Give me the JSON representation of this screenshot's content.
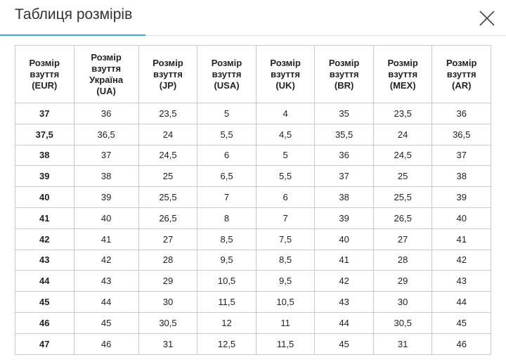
{
  "header": {
    "title": "Таблиця розмірів"
  },
  "table": {
    "header": [
      "Розмір\nвзуття\n(EUR)",
      "Розмір\nвзуття\nУкраїна\n(UA)",
      "Розмір\nвзуття\n(JP)",
      "Розмір\nвзуття\n(USA)",
      "Розмір\nвзуття\n(UK)",
      "Розмір\nвзуття\n(BR)",
      "Розмір\nвзуття\n(MEX)",
      "Розмір\nвзуття\n(AR)"
    ],
    "rows": [
      [
        "37",
        "36",
        "23,5",
        "5",
        "4",
        "35",
        "23,5",
        "36"
      ],
      [
        "37,5",
        "36,5",
        "24",
        "5,5",
        "4,5",
        "35,5",
        "24",
        "36,5"
      ],
      [
        "38",
        "37",
        "24,5",
        "6",
        "5",
        "36",
        "24,5",
        "37"
      ],
      [
        "39",
        "38",
        "25",
        "6,5",
        "5,5",
        "37",
        "25",
        "38"
      ],
      [
        "40",
        "39",
        "25,5",
        "7",
        "6",
        "38",
        "25,5",
        "39"
      ],
      [
        "41",
        "40",
        "26,5",
        "8",
        "7",
        "39",
        "26,5",
        "40"
      ],
      [
        "42",
        "41",
        "27",
        "8,5",
        "7,5",
        "40",
        "27",
        "41"
      ],
      [
        "43",
        "42",
        "28",
        "9,5",
        "8,5",
        "41",
        "28",
        "42"
      ],
      [
        "44",
        "43",
        "29",
        "10,5",
        "9,5",
        "42",
        "29",
        "43"
      ],
      [
        "45",
        "44",
        "30",
        "11,5",
        "10,5",
        "43",
        "30",
        "44"
      ],
      [
        "46",
        "45",
        "30,5",
        "12",
        "11",
        "44",
        "30,5",
        "45"
      ],
      [
        "47",
        "46",
        "31",
        "12,5",
        "11,5",
        "45",
        "31",
        "46"
      ]
    ]
  }
}
